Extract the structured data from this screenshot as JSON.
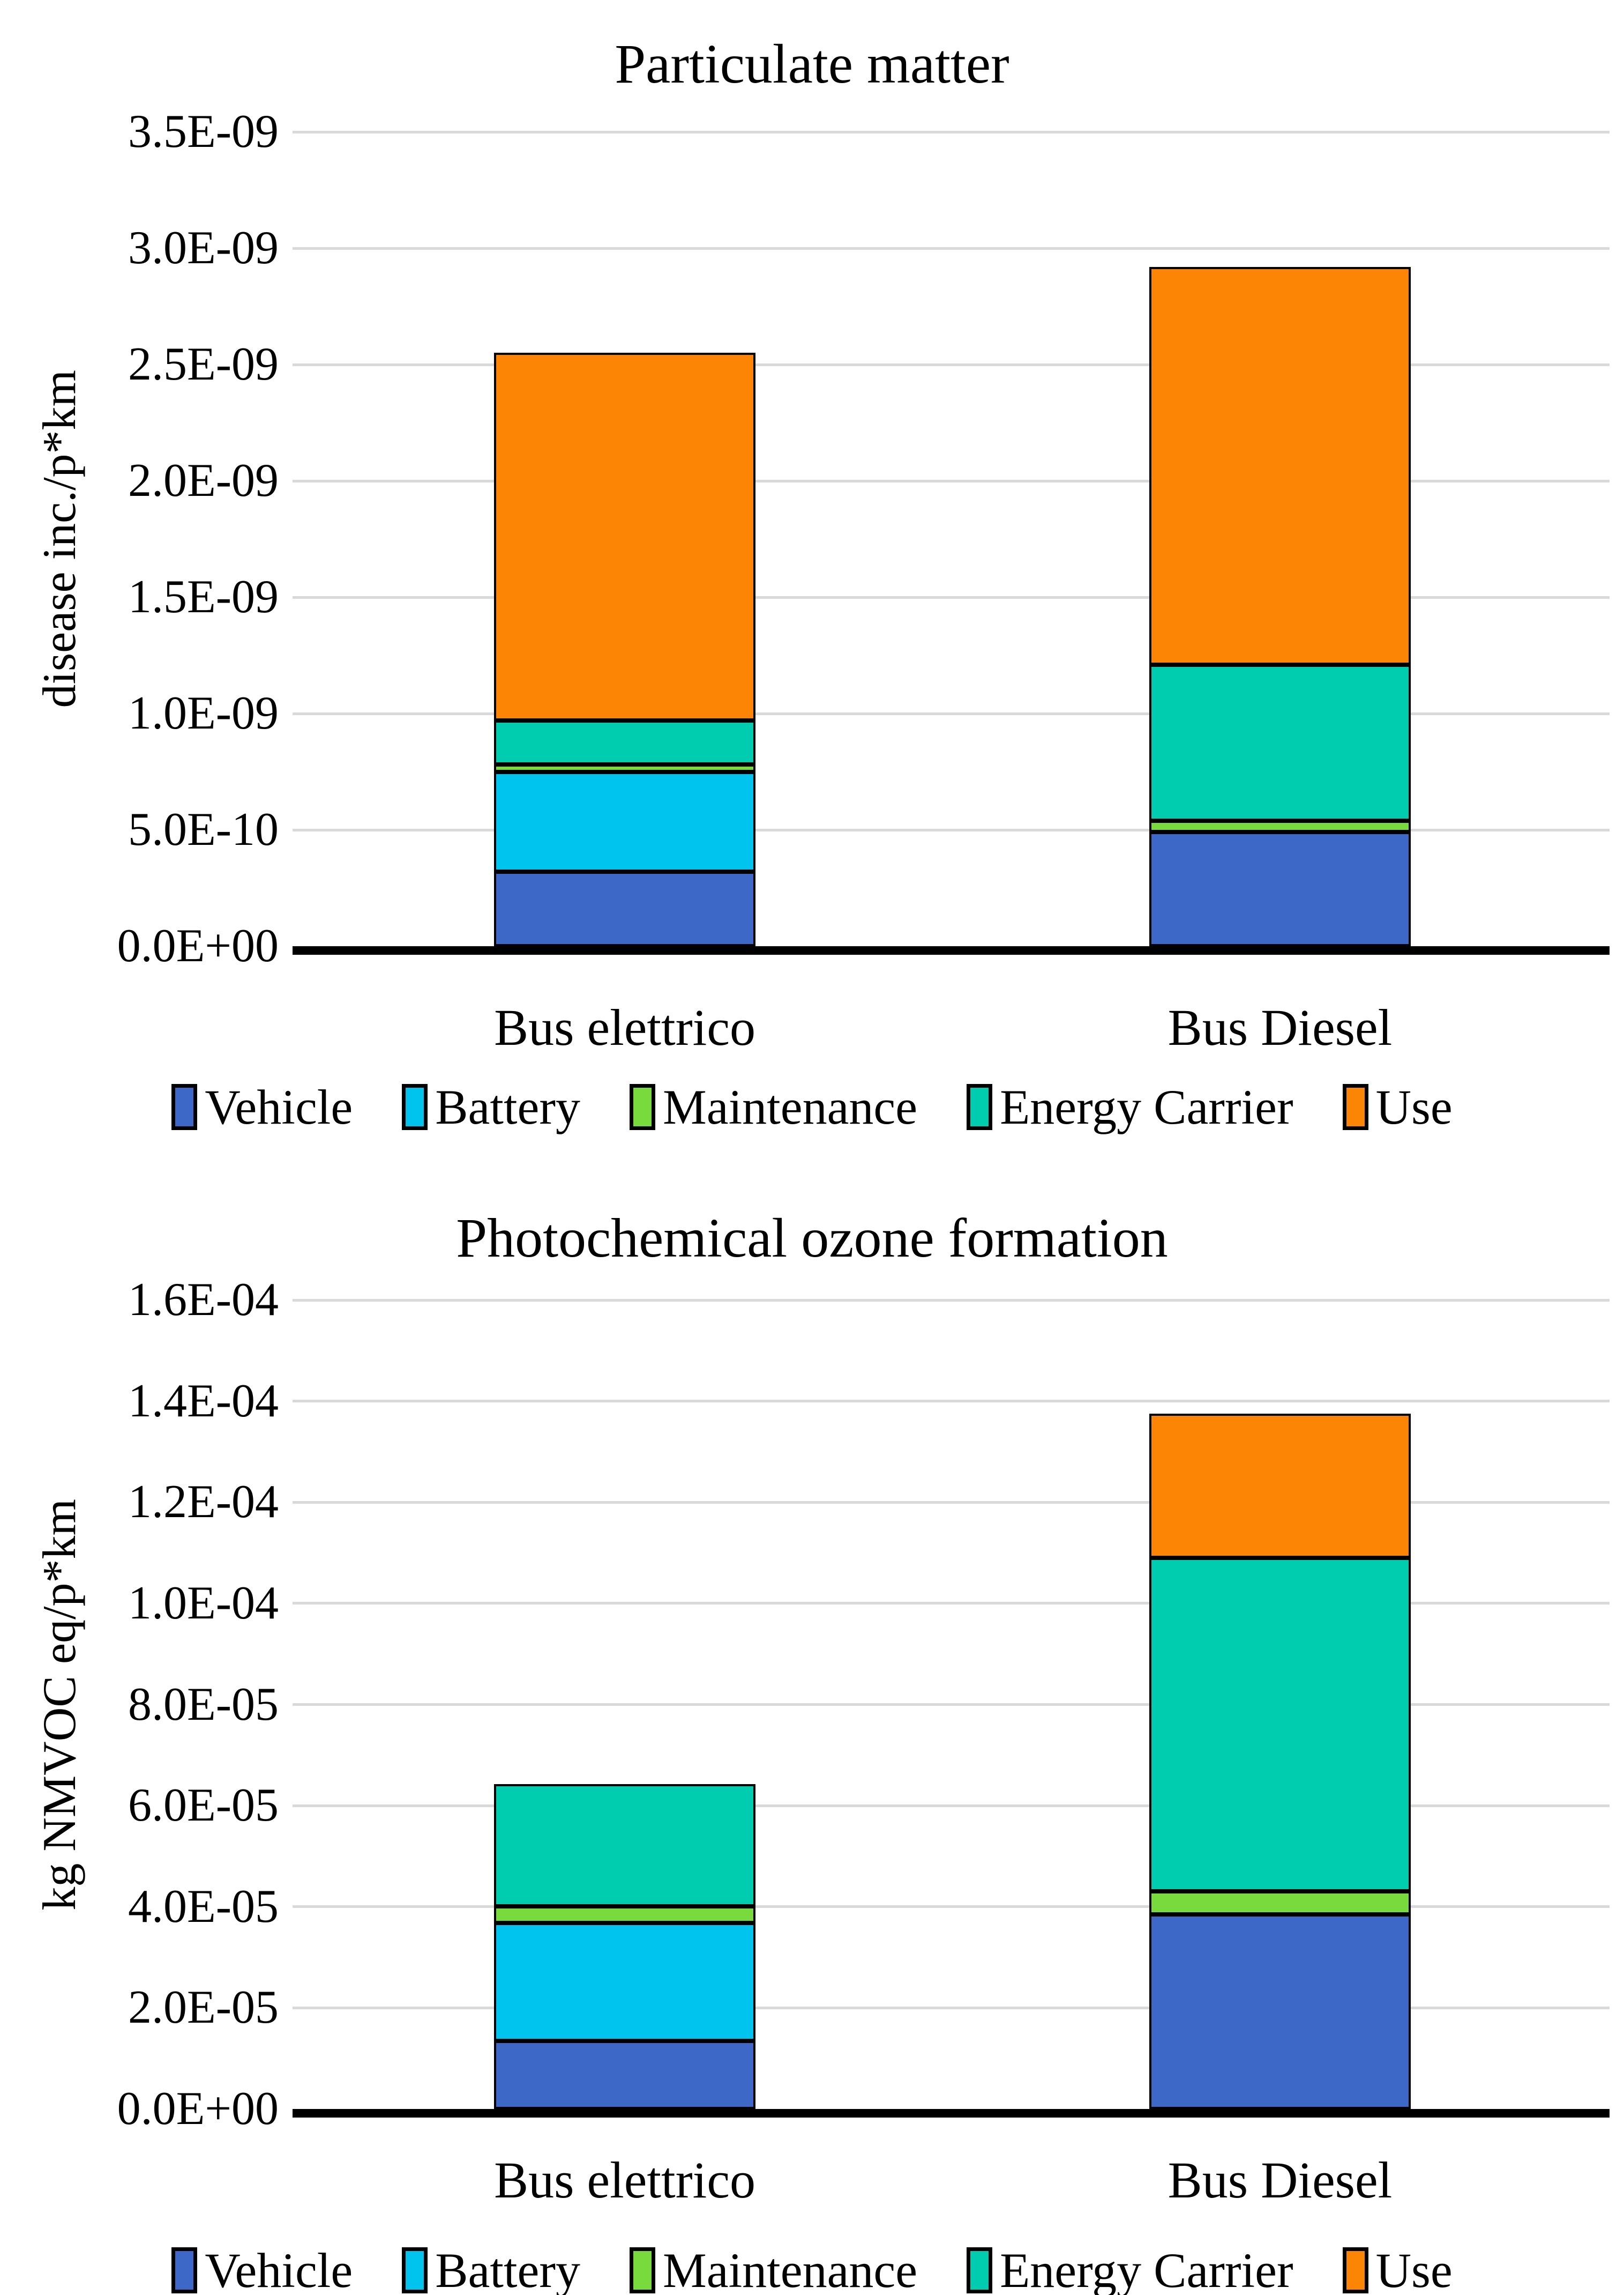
{
  "page_background": "#FFFFFF",
  "categories": [
    "Bus elettrico",
    "Bus Diesel"
  ],
  "legend": {
    "items": [
      {
        "label": "Vehicle",
        "color": "#3E68C8"
      },
      {
        "label": "Battery",
        "color": "#00C3EE"
      },
      {
        "label": "Maintenance",
        "color": "#79DA3E"
      },
      {
        "label": "Energy Carrier",
        "color": "#00CDB0"
      },
      {
        "label": "Use",
        "color": "#FC8505"
      }
    ]
  },
  "chart_data": [
    {
      "type": "bar",
      "stacked": true,
      "title": "Particulate matter",
      "xlabel": "",
      "ylabel": "disease inc./p*km",
      "categories": [
        "Bus elettrico",
        "Bus Diesel"
      ],
      "series": [
        {
          "name": "Vehicle",
          "color": "#3E68C8",
          "values": [
            3.2e-10,
            4.9e-10
          ]
        },
        {
          "name": "Battery",
          "color": "#00C3EE",
          "values": [
            4.3e-10,
            0
          ]
        },
        {
          "name": "Maintenance",
          "color": "#79DA3E",
          "values": [
            3e-11,
            5e-11
          ]
        },
        {
          "name": "Energy Carrier",
          "color": "#00CDB0",
          "values": [
            1.9e-10,
            6.7e-10
          ]
        },
        {
          "name": "Use",
          "color": "#FC8505",
          "values": [
            1.58e-09,
            1.71e-09
          ]
        }
      ],
      "totals": [
        2.55e-09,
        2.92e-09
      ],
      "ylim": [
        0,
        3.5e-09
      ],
      "ytick_step": 5e-10,
      "ytick_labels": [
        "0.0E+00",
        "5.0E-10",
        "1.0E-09",
        "1.5E-09",
        "2.0E-09",
        "2.5E-09",
        "3.0E-09",
        "3.5E-09"
      ],
      "grid": true,
      "legend_position": "bottom"
    },
    {
      "type": "bar",
      "stacked": true,
      "title": "Photochemical ozone formation",
      "xlabel": "",
      "ylabel": "kg NMVOC eq/p*km",
      "categories": [
        "Bus elettrico",
        "Bus Diesel"
      ],
      "series": [
        {
          "name": "Vehicle",
          "color": "#3E68C8",
          "values": [
            1.35e-05,
            3.85e-05
          ]
        },
        {
          "name": "Battery",
          "color": "#00C3EE",
          "values": [
            2.33e-05,
            0
          ]
        },
        {
          "name": "Maintenance",
          "color": "#79DA3E",
          "values": [
            3.3e-06,
            4.5e-06
          ]
        },
        {
          "name": "Energy Carrier",
          "color": "#00CDB0",
          "values": [
            2.42e-05,
            6.6e-05
          ]
        },
        {
          "name": "Use",
          "color": "#FC8505",
          "values": [
            0,
            2.85e-05
          ]
        }
      ],
      "totals": [
        6.43e-05,
        0.0001375
      ],
      "ylim": [
        0,
        0.00016
      ],
      "ytick_step": 2e-05,
      "ytick_labels": [
        "0.0E+00",
        "2.0E-05",
        "4.0E-05",
        "6.0E-05",
        "8.0E-05",
        "1.0E-04",
        "1.2E-04",
        "1.4E-04",
        "1.6E-04"
      ],
      "grid": true,
      "legend_position": "bottom"
    }
  ]
}
